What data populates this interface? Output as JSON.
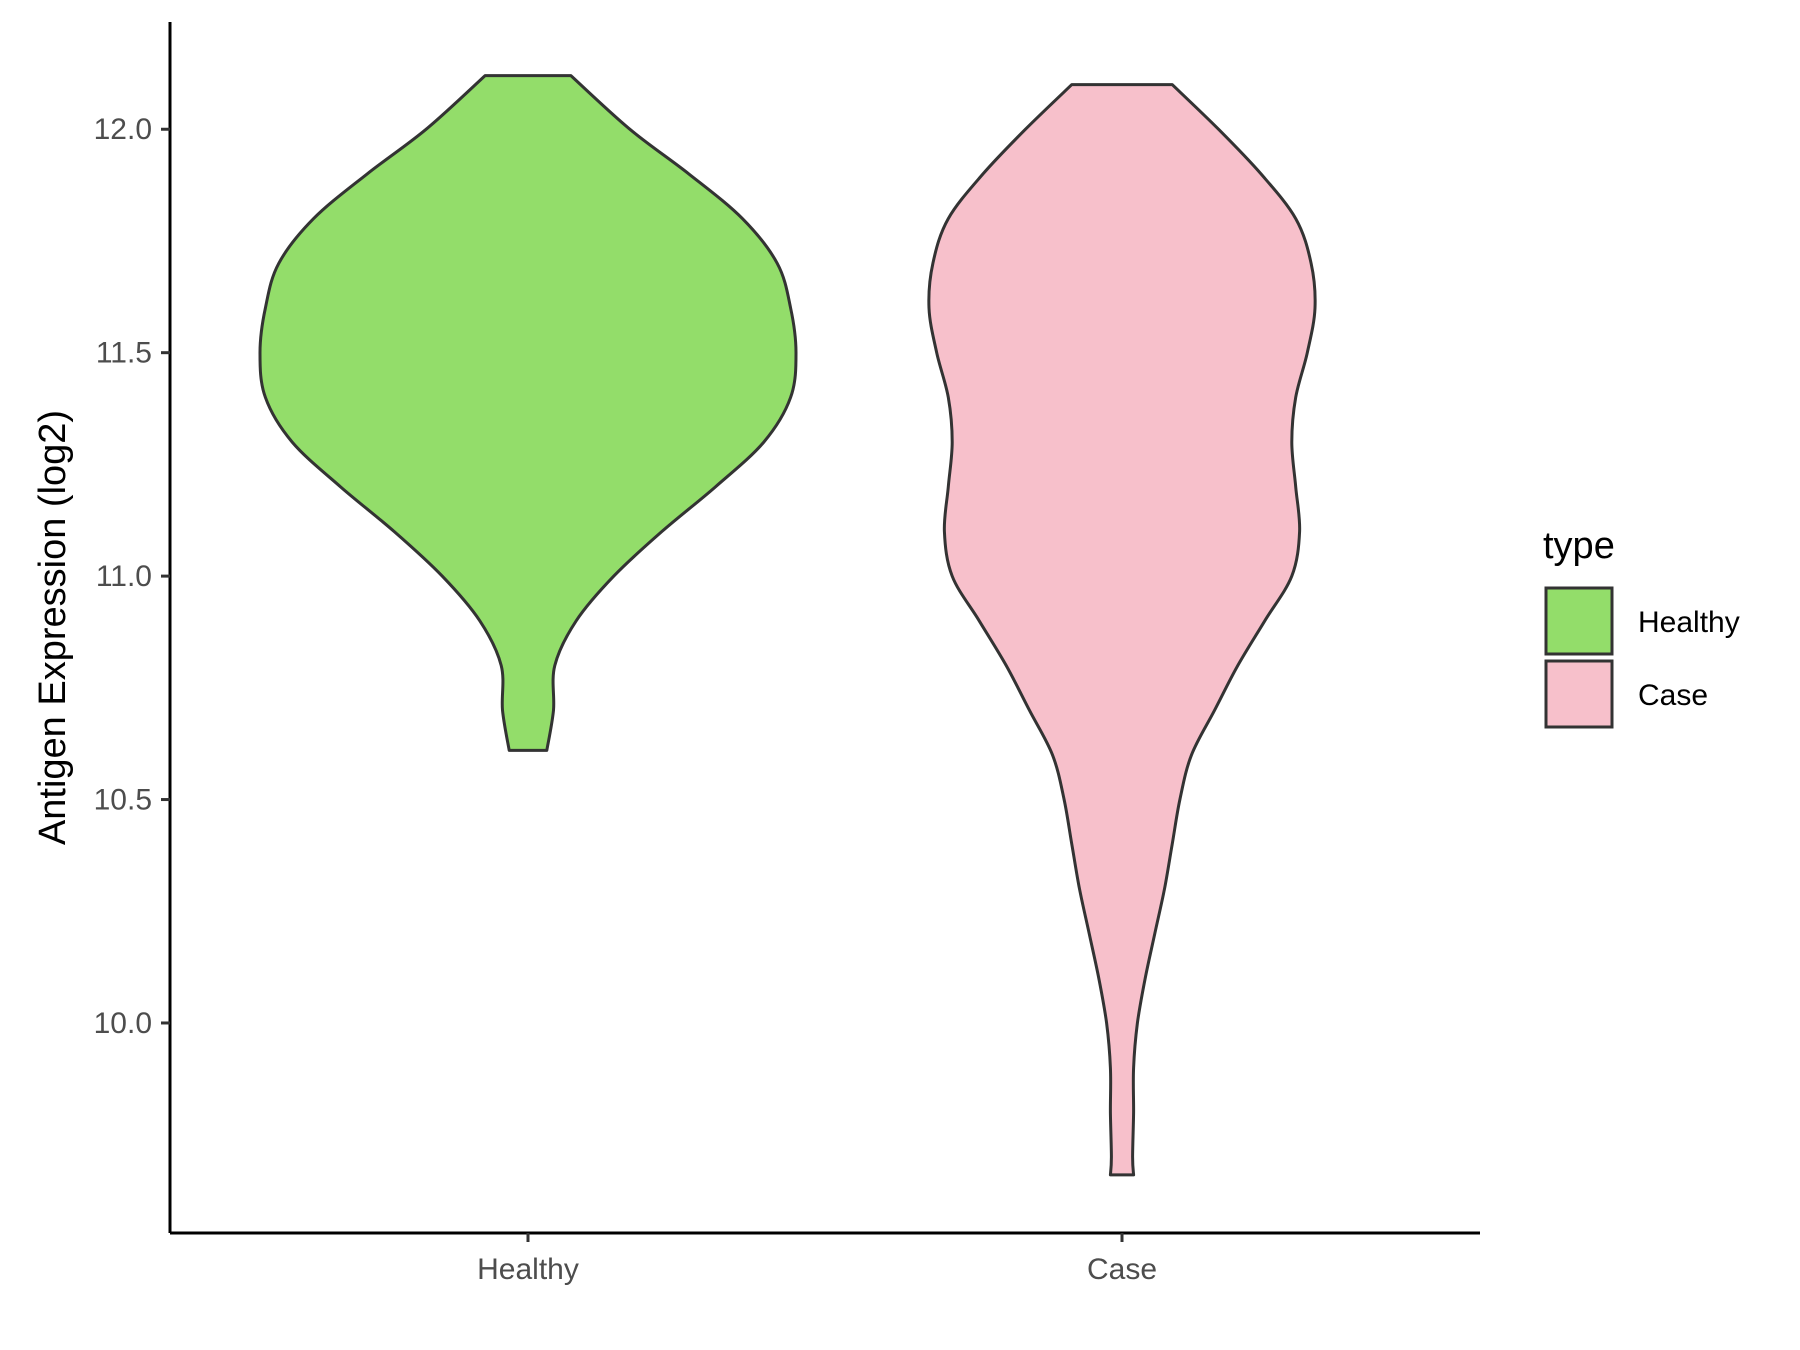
{
  "chart_data": {
    "type": "violin",
    "title": "",
    "xlabel": "",
    "ylabel": "Antigen Expression (log2)",
    "ylim": [
      9.53,
      12.24
    ],
    "y_ticks": [
      10.0,
      10.5,
      11.0,
      11.5,
      12.0
    ],
    "y_tick_labels": [
      "10.0",
      "10.5",
      "11.0",
      "11.5",
      "12.0"
    ],
    "categories": [
      "Healthy",
      "Case"
    ],
    "grid": false,
    "legend": {
      "title": "type",
      "position": "right",
      "items": [
        {
          "label": "Healthy",
          "color": "#93dd6a"
        },
        {
          "label": "Case",
          "color": "#f7c0cb"
        }
      ]
    },
    "series": [
      {
        "name": "Healthy",
        "color": "#93dd6a",
        "min": 10.61,
        "max": 12.12,
        "density_profile": [
          [
            12.12,
            0.16
          ],
          [
            12.0,
            0.38
          ],
          [
            11.9,
            0.6
          ],
          [
            11.8,
            0.8
          ],
          [
            11.7,
            0.93
          ],
          [
            11.6,
            0.98
          ],
          [
            11.5,
            1.0
          ],
          [
            11.4,
            0.98
          ],
          [
            11.3,
            0.88
          ],
          [
            11.2,
            0.7
          ],
          [
            11.1,
            0.5
          ],
          [
            11.0,
            0.32
          ],
          [
            10.9,
            0.18
          ],
          [
            10.8,
            0.1
          ],
          [
            10.7,
            0.095
          ],
          [
            10.61,
            0.07
          ]
        ]
      },
      {
        "name": "Case",
        "color": "#f7c0cb",
        "min": 9.66,
        "max": 12.1,
        "density_profile": [
          [
            12.1,
            0.26
          ],
          [
            12.0,
            0.5
          ],
          [
            11.9,
            0.72
          ],
          [
            11.8,
            0.9
          ],
          [
            11.7,
            0.98
          ],
          [
            11.6,
            1.0
          ],
          [
            11.5,
            0.96
          ],
          [
            11.4,
            0.9
          ],
          [
            11.3,
            0.88
          ],
          [
            11.2,
            0.9
          ],
          [
            11.1,
            0.92
          ],
          [
            11.0,
            0.88
          ],
          [
            10.9,
            0.74
          ],
          [
            10.8,
            0.6
          ],
          [
            10.7,
            0.48
          ],
          [
            10.6,
            0.36
          ],
          [
            10.5,
            0.3
          ],
          [
            10.4,
            0.26
          ],
          [
            10.3,
            0.22
          ],
          [
            10.2,
            0.17
          ],
          [
            10.1,
            0.12
          ],
          [
            10.0,
            0.08
          ],
          [
            9.9,
            0.06
          ],
          [
            9.8,
            0.06
          ],
          [
            9.7,
            0.055
          ],
          [
            9.66,
            0.06
          ]
        ]
      }
    ]
  }
}
